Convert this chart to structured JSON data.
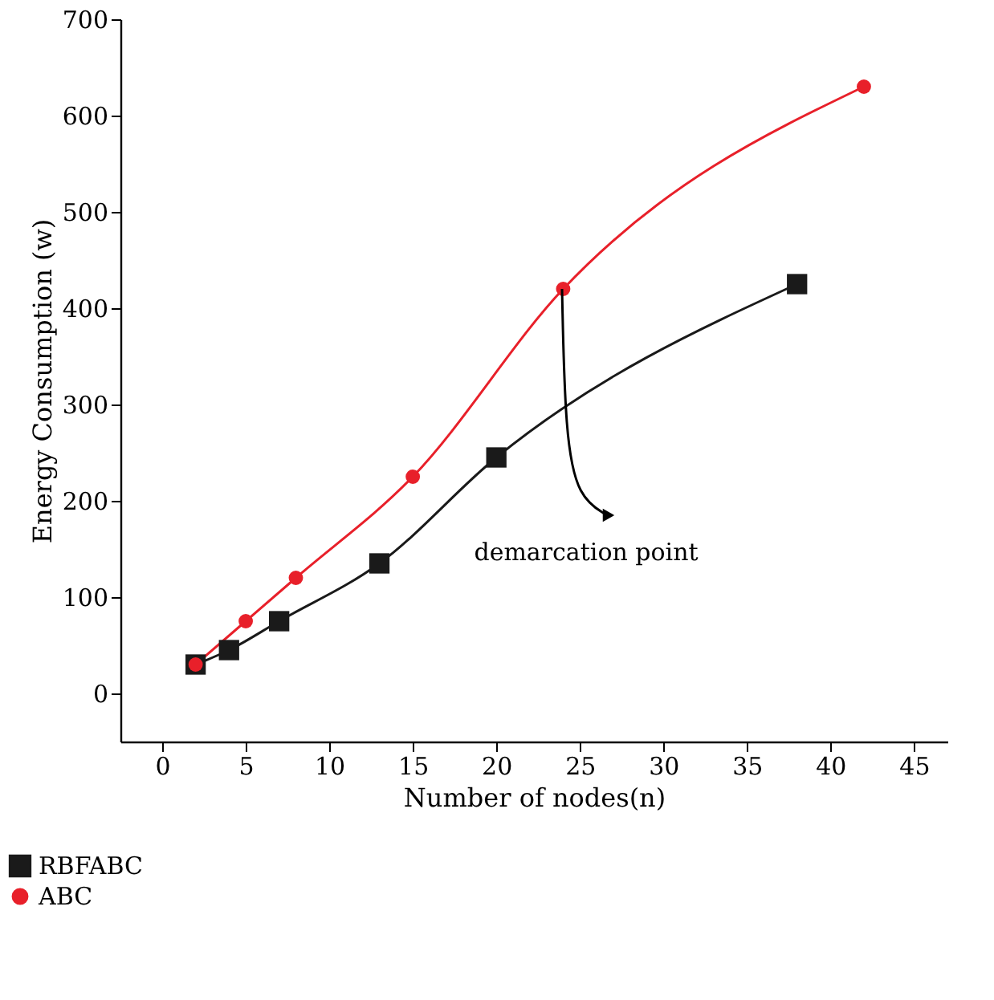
{
  "chart_data": {
    "type": "line",
    "xlabel": "Number of nodes(n)",
    "ylabel": "Energy Consumption (w)",
    "xlim": [
      -2.5,
      47
    ],
    "xticks": [
      0,
      5,
      10,
      15,
      20,
      25,
      30,
      35,
      40,
      45
    ],
    "ylim": [
      -50,
      700
    ],
    "yticks": [
      0,
      100,
      200,
      300,
      400,
      500,
      600,
      700
    ],
    "series": [
      {
        "name": "RBFABC",
        "color": "#1a1a1a",
        "marker": "square",
        "x": [
          2,
          4,
          7,
          13,
          20,
          38
        ],
        "values": [
          30,
          45,
          75,
          135,
          245,
          425
        ]
      },
      {
        "name": "ABC",
        "color": "#e8202a",
        "marker": "circle",
        "x": [
          2,
          5,
          8,
          15,
          24,
          42
        ],
        "values": [
          30,
          75,
          120,
          225,
          420,
          630
        ]
      }
    ],
    "annotations": [
      "demarcation point"
    ],
    "grid": false,
    "legend": "bottom"
  }
}
